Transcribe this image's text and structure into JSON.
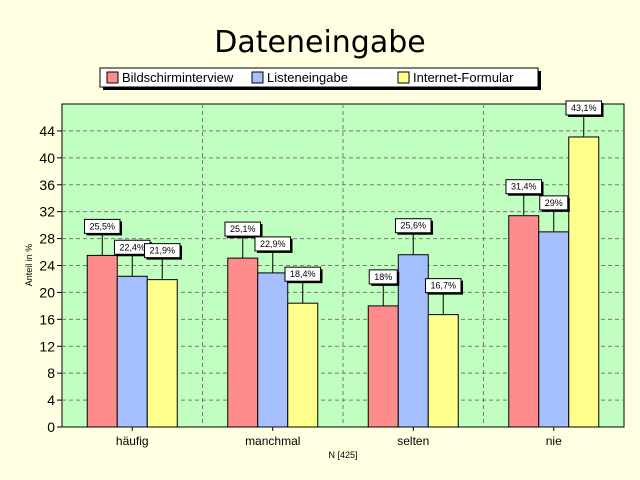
{
  "chart_data": {
    "type": "bar",
    "title": "Dateneingabe",
    "ylabel": "Anteil in %",
    "xlabel": "N [425]",
    "ylim": [
      0,
      48
    ],
    "yticks": [
      0,
      4,
      8,
      12,
      16,
      20,
      24,
      28,
      32,
      36,
      40,
      44
    ],
    "categories": [
      "häufig",
      "manchmal",
      "selten",
      "nie"
    ],
    "series": [
      {
        "name": "Bildschirminterview",
        "color": "#ff8c8c",
        "values": [
          25.5,
          25.1,
          18,
          31.4
        ],
        "labels": [
          "25,5%",
          "25,1%",
          "18%",
          "31,4%"
        ]
      },
      {
        "name": "Listeneingabe",
        "color": "#a6bfff",
        "values": [
          22.4,
          22.9,
          25.6,
          29
        ],
        "labels": [
          "22,4%",
          "22,9%",
          "25,6%",
          "29%"
        ]
      },
      {
        "name": "Internet-Formular",
        "color": "#ffff8c",
        "values": [
          21.9,
          18.4,
          16.7,
          43.1
        ],
        "labels": [
          "21,9%",
          "18,4%",
          "16,7%",
          "43,1%"
        ]
      }
    ],
    "grid": true,
    "legend_position": "top",
    "plot_background": "#c0ffc0"
  }
}
